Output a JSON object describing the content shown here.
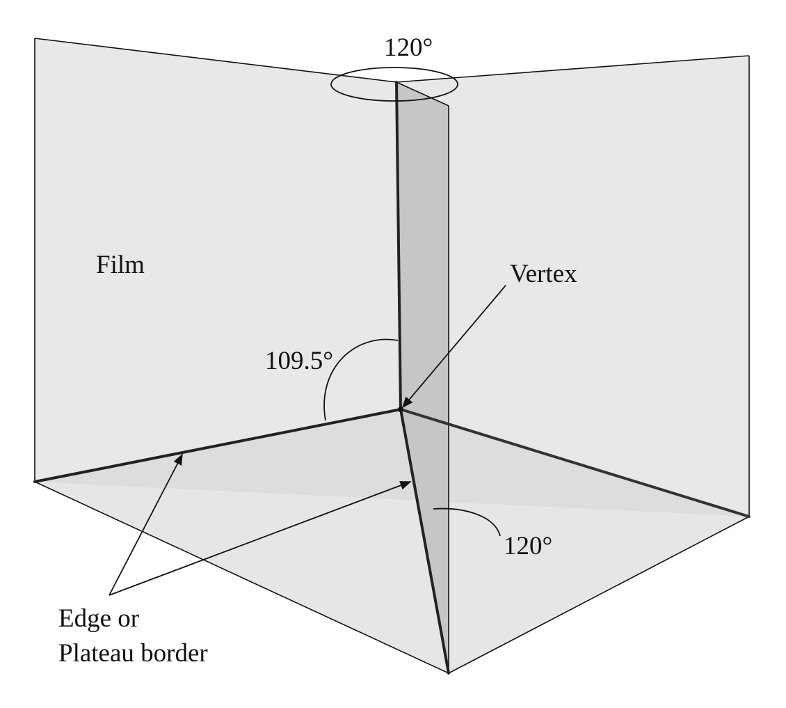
{
  "labels": {
    "angle_top": "120°",
    "film": "Film",
    "vertex": "Vertex",
    "angle_tetrahedral": "109.5°",
    "angle_bottom": "120°",
    "edge_line1": "Edge or",
    "edge_line2": "Plateau border"
  },
  "colors": {
    "film_light": "#e8e8e8",
    "film_dark": "#c4c4c4",
    "line": "#111111",
    "background": "#ffffff"
  }
}
